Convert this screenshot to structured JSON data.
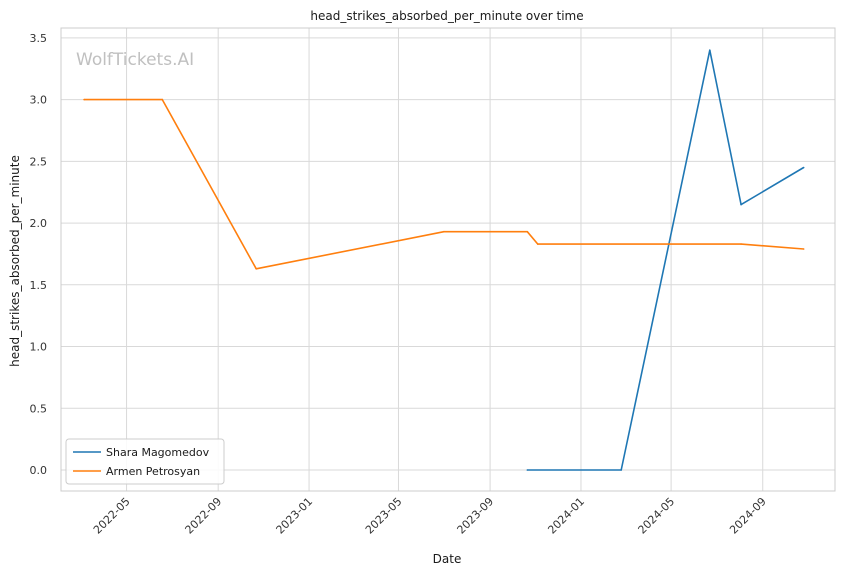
{
  "chart_data": {
    "type": "line",
    "title": "head_strikes_absorbed_per_minute over time",
    "xlabel": "Date",
    "ylabel": "head_strikes_absorbed_per_minute",
    "watermark": "WolfTickets.AI",
    "ylim": [
      -0.17,
      3.58
    ],
    "xlim": [
      "2022-02-02",
      "2024-12-07"
    ],
    "grid": true,
    "legend_position": "lower-left",
    "x_tick_labels": [
      "2022-05",
      "2022-09",
      "2023-01",
      "2023-05",
      "2023-09",
      "2024-01",
      "2024-05",
      "2024-09"
    ],
    "x_tick_dates": [
      "2022-05-01",
      "2022-09-01",
      "2023-01-01",
      "2023-05-01",
      "2023-09-01",
      "2024-01-01",
      "2024-05-01",
      "2024-09-01"
    ],
    "y_tick_labels": [
      "0.0",
      "0.5",
      "1.0",
      "1.5",
      "2.0",
      "2.5",
      "3.0",
      "3.5"
    ],
    "y_tick_values": [
      0.0,
      0.5,
      1.0,
      1.5,
      2.0,
      2.5,
      3.0,
      3.5
    ],
    "series": [
      {
        "name": "Shara Magomedov",
        "color": "#1f77b4",
        "x": [
          "2023-10-21",
          "2024-02-24",
          "2024-06-22",
          "2024-08-03",
          "2024-10-26"
        ],
        "y": [
          0.0,
          0.0,
          3.4,
          2.15,
          2.45
        ]
      },
      {
        "name": "Armen Petrosyan",
        "color": "#ff7f0e",
        "x": [
          "2022-03-05",
          "2022-06-18",
          "2022-10-22",
          "2023-07-01",
          "2023-10-21",
          "2023-11-04",
          "2024-08-03",
          "2024-10-26"
        ],
        "y": [
          3.0,
          3.0,
          1.63,
          1.93,
          1.93,
          1.83,
          1.83,
          1.79
        ]
      }
    ]
  }
}
